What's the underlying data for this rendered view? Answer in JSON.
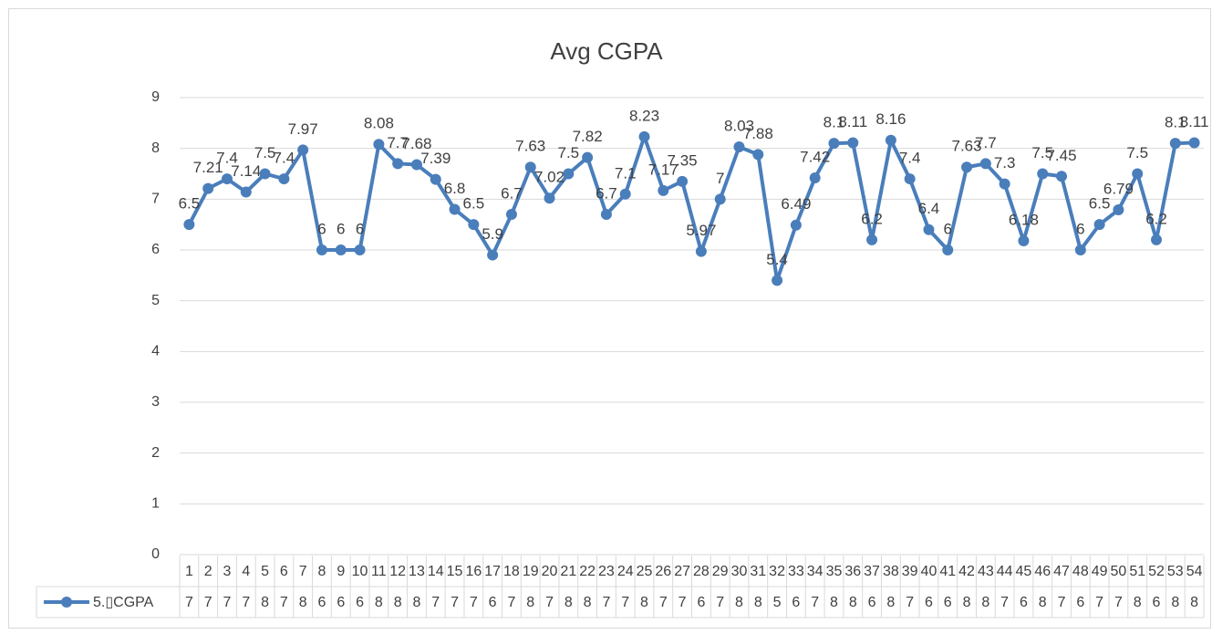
{
  "chart_data": {
    "type": "line",
    "title": "Avg CGPA",
    "categories": [
      "1",
      "2",
      "3",
      "4",
      "5",
      "6",
      "7",
      "8",
      "9",
      "10",
      "11",
      "12",
      "13",
      "14",
      "15",
      "16",
      "17",
      "18",
      "19",
      "20",
      "21",
      "22",
      "23",
      "24",
      "25",
      "26",
      "27",
      "28",
      "29",
      "30",
      "31",
      "32",
      "33",
      "34",
      "35",
      "36",
      "37",
      "38",
      "39",
      "40",
      "41",
      "42",
      "43",
      "44",
      "45",
      "46",
      "47",
      "48",
      "49",
      "50",
      "51",
      "52",
      "53",
      "54"
    ],
    "series": [
      {
        "name": "5.▯CGPA",
        "color": "#4a7ebb",
        "values": [
          6.5,
          7.21,
          7.4,
          7.14,
          7.5,
          7.4,
          7.97,
          6,
          6,
          6,
          8.08,
          7.7,
          7.68,
          7.39,
          6.8,
          6.5,
          5.9,
          6.7,
          7.63,
          7.02,
          7.5,
          7.82,
          6.7,
          7.1,
          8.23,
          7.17,
          7.35,
          5.97,
          7,
          8.03,
          7.88,
          5.4,
          6.49,
          7.42,
          8.1,
          8.11,
          6.2,
          8.16,
          7.4,
          6.4,
          6,
          7.63,
          7.7,
          7.3,
          6.18,
          7.5,
          7.45,
          6,
          6.5,
          6.79,
          7.5,
          6.2,
          8.1,
          8.11
        ],
        "value_labels": [
          "7",
          "7",
          "7",
          "7",
          "8",
          "7",
          "8",
          "6",
          "6",
          "6",
          "8",
          "8",
          "8",
          "7",
          "7",
          "7",
          "6",
          "7",
          "8",
          "7",
          "8",
          "8",
          "7",
          "7",
          "8",
          "7",
          "7",
          "6",
          "7",
          "8",
          "8",
          "5",
          "6",
          "7",
          "8",
          "8",
          "6",
          "8",
          "7",
          "6",
          "6",
          "8",
          "8",
          "7",
          "6",
          "8",
          "7",
          "6",
          "7",
          "7",
          "8",
          "6",
          "8",
          "8"
        ]
      }
    ],
    "ylim": [
      0,
      9
    ],
    "yticks": [
      0,
      1,
      2,
      3,
      4,
      5,
      6,
      7,
      8,
      9
    ],
    "grid": true
  }
}
